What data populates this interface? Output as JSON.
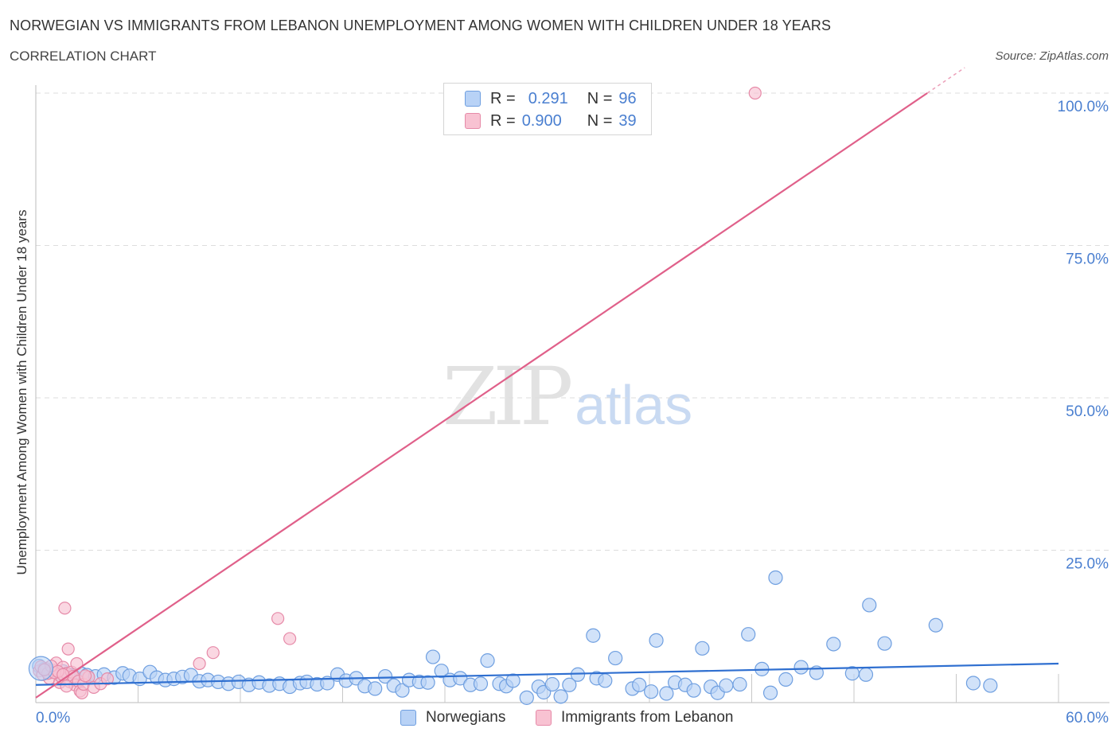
{
  "header": {
    "title": "NORWEGIAN VS IMMIGRANTS FROM LEBANON UNEMPLOYMENT AMONG WOMEN WITH CHILDREN UNDER 18 YEARS",
    "subtitle": "CORRELATION CHART",
    "source": "Source: ZipAtlas.com"
  },
  "watermark": {
    "zip": "ZIP",
    "atlas": "atlas"
  },
  "legend": {
    "r_label": "R =",
    "n_label": "N =",
    "series": [
      {
        "r": "0.291",
        "n": "96"
      },
      {
        "r": "0.900",
        "n": "39"
      }
    ]
  },
  "colors": {
    "norwegians_fill": "#b8d2f6",
    "norwegians_stroke": "#6f9fe0",
    "norwegians_line": "#2f6fd0",
    "lebanon_fill": "#f8c2d2",
    "lebanon_stroke": "#e68aa8",
    "lebanon_line": "#e0608a",
    "axis_label": "#4a7fd0",
    "grid": "#dddddd"
  },
  "chart_data": {
    "type": "scatter",
    "title": "NORWEGIAN VS IMMIGRANTS FROM LEBANON UNEMPLOYMENT AMONG WOMEN WITH CHILDREN UNDER 18 YEARS",
    "subtitle": "CORRELATION CHART",
    "xlabel": "",
    "ylabel": "Unemployment Among Women with Children Under 18 years",
    "xlim": [
      0,
      60
    ],
    "ylim": [
      0,
      100
    ],
    "x_tick_labels": [
      "0.0%",
      "60.0%"
    ],
    "y_tick_labels": [
      "100.0%",
      "75.0%",
      "50.0%",
      "25.0%"
    ],
    "y_ticks": [
      100,
      75,
      50,
      25
    ],
    "x_minor_ticks": [
      6,
      12,
      18,
      24,
      30,
      36,
      42,
      48,
      54,
      60
    ],
    "grid": true,
    "legend_position": "top-center",
    "series": [
      {
        "name": "Norwegians",
        "points": [
          [
            0.2,
            6.0
          ],
          [
            0.5,
            5.5
          ],
          [
            0.8,
            5.0
          ],
          [
            1.0,
            5.2
          ],
          [
            1.3,
            4.8
          ],
          [
            1.6,
            5.1
          ],
          [
            1.9,
            4.6
          ],
          [
            2.2,
            4.4
          ],
          [
            2.7,
            4.7
          ],
          [
            3.0,
            4.5
          ],
          [
            3.5,
            4.3
          ],
          [
            4.0,
            4.6
          ],
          [
            4.6,
            4.1
          ],
          [
            5.1,
            4.8
          ],
          [
            5.5,
            4.4
          ],
          [
            6.1,
            3.9
          ],
          [
            6.7,
            5.0
          ],
          [
            7.1,
            4.1
          ],
          [
            7.6,
            3.7
          ],
          [
            8.1,
            3.9
          ],
          [
            8.6,
            4.2
          ],
          [
            9.1,
            4.5
          ],
          [
            9.6,
            3.5
          ],
          [
            10.1,
            3.7
          ],
          [
            10.7,
            3.4
          ],
          [
            11.3,
            3.1
          ],
          [
            11.9,
            3.4
          ],
          [
            12.5,
            2.9
          ],
          [
            13.1,
            3.3
          ],
          [
            13.7,
            2.8
          ],
          [
            14.3,
            3.1
          ],
          [
            14.9,
            2.6
          ],
          [
            15.5,
            3.2
          ],
          [
            15.9,
            3.4
          ],
          [
            16.5,
            3.0
          ],
          [
            17.1,
            3.2
          ],
          [
            17.7,
            4.6
          ],
          [
            18.2,
            3.6
          ],
          [
            18.8,
            4.0
          ],
          [
            19.3,
            2.7
          ],
          [
            19.9,
            2.3
          ],
          [
            20.5,
            4.3
          ],
          [
            21.0,
            2.8
          ],
          [
            21.5,
            2.0
          ],
          [
            21.9,
            3.7
          ],
          [
            22.5,
            3.4
          ],
          [
            23.0,
            3.3
          ],
          [
            23.3,
            7.5
          ],
          [
            23.8,
            5.2
          ],
          [
            24.3,
            3.7
          ],
          [
            24.9,
            4.0
          ],
          [
            25.5,
            2.9
          ],
          [
            26.1,
            3.1
          ],
          [
            26.5,
            6.9
          ],
          [
            27.2,
            3.1
          ],
          [
            27.6,
            2.7
          ],
          [
            28.0,
            3.6
          ],
          [
            28.8,
            0.8
          ],
          [
            29.5,
            2.6
          ],
          [
            29.8,
            1.7
          ],
          [
            30.3,
            3.0
          ],
          [
            30.8,
            1.0
          ],
          [
            31.3,
            2.9
          ],
          [
            31.8,
            4.6
          ],
          [
            32.7,
            11.0
          ],
          [
            32.9,
            4.0
          ],
          [
            33.4,
            3.6
          ],
          [
            34.0,
            7.3
          ],
          [
            35.0,
            2.3
          ],
          [
            35.4,
            2.9
          ],
          [
            36.1,
            1.8
          ],
          [
            36.4,
            10.2
          ],
          [
            37.0,
            1.5
          ],
          [
            37.5,
            3.3
          ],
          [
            38.1,
            2.9
          ],
          [
            38.6,
            2.0
          ],
          [
            39.1,
            8.9
          ],
          [
            39.6,
            2.6
          ],
          [
            40.0,
            1.6
          ],
          [
            40.5,
            2.8
          ],
          [
            41.3,
            3.0
          ],
          [
            41.8,
            11.2
          ],
          [
            42.6,
            5.5
          ],
          [
            43.1,
            1.6
          ],
          [
            43.4,
            20.5
          ],
          [
            44.0,
            3.8
          ],
          [
            44.9,
            5.8
          ],
          [
            45.8,
            4.9
          ],
          [
            46.8,
            9.6
          ],
          [
            47.9,
            4.8
          ],
          [
            48.7,
            4.6
          ],
          [
            48.9,
            16.0
          ],
          [
            49.8,
            9.7
          ],
          [
            52.8,
            12.7
          ],
          [
            55.0,
            3.2
          ],
          [
            56.0,
            2.8
          ]
        ],
        "trend": {
          "x": [
            0,
            60
          ],
          "y": [
            2.9,
            6.4
          ]
        }
      },
      {
        "name": "Immigrants from Lebanon",
        "points": [
          [
            0.2,
            5.2
          ],
          [
            0.4,
            4.6
          ],
          [
            0.6,
            5.6
          ],
          [
            0.8,
            4.0
          ],
          [
            1.0,
            5.3
          ],
          [
            1.2,
            6.5
          ],
          [
            1.4,
            3.3
          ],
          [
            1.5,
            4.2
          ],
          [
            1.6,
            5.8
          ],
          [
            1.7,
            15.5
          ],
          [
            1.8,
            4.8
          ],
          [
            1.9,
            8.8
          ],
          [
            2.0,
            3.4
          ],
          [
            2.1,
            5.0
          ],
          [
            2.2,
            4.3
          ],
          [
            2.3,
            2.9
          ],
          [
            2.4,
            6.4
          ],
          [
            2.5,
            3.5
          ],
          [
            2.6,
            1.9
          ],
          [
            2.7,
            1.6
          ],
          [
            2.8,
            3.0
          ],
          [
            3.1,
            4.2
          ],
          [
            3.4,
            2.5
          ],
          [
            3.8,
            3.1
          ],
          [
            4.2,
            3.9
          ],
          [
            0.3,
            5.9
          ],
          [
            0.7,
            4.8
          ],
          [
            1.1,
            4.9
          ],
          [
            2.9,
            4.4
          ],
          [
            0.9,
            6.0
          ],
          [
            1.3,
            5.1
          ],
          [
            1.8,
            2.7
          ],
          [
            9.6,
            6.4
          ],
          [
            10.4,
            8.2
          ],
          [
            14.2,
            13.8
          ],
          [
            14.9,
            10.5
          ],
          [
            42.2,
            100.0
          ],
          [
            0.5,
            5.4
          ],
          [
            1.6,
            4.6
          ]
        ],
        "trend": {
          "x": [
            0,
            52.3
          ],
          "y": [
            0.8,
            100.0
          ]
        }
      }
    ]
  },
  "bottom_legend": [
    {
      "label": "Norwegians"
    },
    {
      "label": "Immigrants from Lebanon"
    }
  ]
}
